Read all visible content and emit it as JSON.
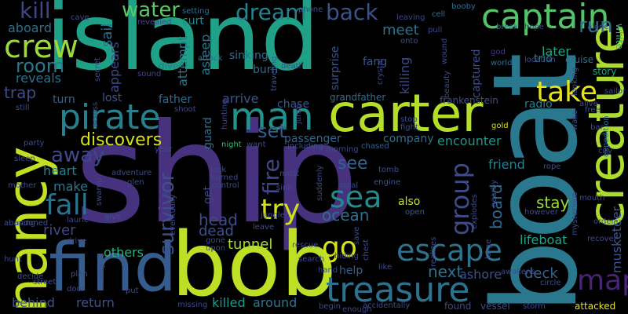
{
  "words": {
    "ship": {
      "text": "ship",
      "color": "#46327e"
    },
    "island": {
      "text": "island",
      "color": "#1fa187"
    },
    "boat": {
      "text": "boat",
      "color": "#2a788e"
    },
    "bob": {
      "text": "bob",
      "color": "#bddf26"
    },
    "find": {
      "text": "find",
      "color": "#365c8d"
    },
    "nancy": {
      "text": "nancy",
      "color": "#c2df23"
    },
    "carter": {
      "text": "carter",
      "color": "#b5de2b"
    },
    "creature": {
      "text": "creature",
      "color": "#addc30"
    },
    "captain": {
      "text": "captain",
      "color": "#52c569"
    },
    "pirate": {
      "text": "pirate",
      "color": "#26818e"
    },
    "treasure": {
      "text": "treasure",
      "color": "#2c728e"
    },
    "man": {
      "text": "man",
      "color": "#20938c"
    },
    "crew": {
      "text": "crew",
      "color": "#9bd93c"
    },
    "escape": {
      "text": "escape",
      "color": "#2c728e"
    },
    "sea": {
      "text": "sea",
      "color": "#238a8d"
    },
    "fall": {
      "text": "fall",
      "color": "#2c728e"
    },
    "map": {
      "text": "map",
      "color": "#482475"
    },
    "take": {
      "text": "take",
      "color": "#e5e419"
    },
    "go": {
      "text": "go",
      "color": "#d5e21a"
    },
    "try": {
      "text": "try",
      "color": "#d0e11c"
    },
    "group": {
      "text": "group",
      "color": "#3e4a89"
    },
    "dream": {
      "text": "dream",
      "color": "#26828e"
    },
    "back": {
      "text": "back",
      "color": "#3b528b"
    },
    "kill": {
      "text": "kill",
      "color": "#414487"
    },
    "water": {
      "text": "water",
      "color": "#5ac864"
    },
    "room": {
      "text": "room",
      "color": "#2a788e"
    },
    "run": {
      "text": "run",
      "color": "#2c728e"
    },
    "away": {
      "text": "away",
      "color": "#3e4989"
    },
    "survivor": {
      "text": "survivor",
      "color": "#3b518b"
    },
    "discovers": {
      "text": "discovers",
      "color": "#d8e219"
    },
    "fire": {
      "text": "fire",
      "color": "#3f4889"
    },
    "set": {
      "text": "set",
      "color": "#365d8d"
    },
    "reveals": {
      "text": "reveals",
      "color": "#2c718e"
    },
    "trap": {
      "text": "trap",
      "color": "#3e4c8a"
    },
    "see": {
      "text": "see",
      "color": "#33638d"
    },
    "board": {
      "text": "board",
      "color": "#306a8e"
    },
    "stay": {
      "text": "stay",
      "color": "#9bd93c"
    },
    "tunnel": {
      "text": "tunnel",
      "color": "#a5db36"
    },
    "ocean": {
      "text": "ocean",
      "color": "#2e6f8e"
    },
    "next": {
      "text": "next",
      "color": "#2c738e"
    },
    "head": {
      "text": "head",
      "color": "#3e4a89"
    },
    "dead": {
      "text": "dead",
      "color": "#3b518b"
    },
    "river": {
      "text": "river",
      "color": "#3f4788"
    },
    "others": {
      "text": "others",
      "color": "#29af7f"
    },
    "deck": {
      "text": "deck",
      "color": "#33638d"
    },
    "ashore": {
      "text": "ashore",
      "color": "#3b518b"
    },
    "lifeboat": {
      "text": "lifeboat",
      "color": "#20a386"
    },
    "musketeer": {
      "text": "musketeer",
      "color": "#3a548c"
    },
    "return": {
      "text": "return",
      "color": "#3b528b"
    },
    "killed": {
      "text": "killed",
      "color": "#1f978b"
    },
    "around": {
      "text": "around",
      "color": "#2a768e"
    },
    "behind": {
      "text": "behind",
      "color": "#3a548c"
    },
    "encounter": {
      "text": "encounter",
      "color": "#1f968b"
    },
    "friend": {
      "text": "friend",
      "color": "#277f8e"
    },
    "passenger": {
      "text": "passenger",
      "color": "#33638d"
    },
    "company": {
      "text": "company",
      "color": "#2d708e"
    },
    "heart": {
      "text": "heart",
      "color": "#27808e"
    },
    "make": {
      "text": "make",
      "color": "#2a788e"
    },
    "meet": {
      "text": "meet",
      "color": "#2c728e"
    },
    "sail": {
      "text": "sail",
      "color": "#2d708e"
    },
    "appears": {
      "text": "appears",
      "color": "#3e4c8a"
    },
    "aboard": {
      "text": "aboard",
      "color": "#2d708e"
    },
    "turn": {
      "text": "turn",
      "color": "#33638d"
    },
    "lost": {
      "text": "lost",
      "color": "#3a548c"
    },
    "father": {
      "text": "father",
      "color": "#2f6c8e"
    },
    "arrive": {
      "text": "arrive",
      "color": "#3a548c"
    },
    "chase": {
      "text": "chase",
      "color": "#3a548c"
    },
    "attempt": {
      "text": "attempt",
      "color": "#2a788e"
    },
    "asleep": {
      "text": "asleep",
      "color": "#2a778e"
    },
    "curt": {
      "text": "curt",
      "color": "#23888e"
    },
    "sinking": {
      "text": "sinking",
      "color": "#2d708e"
    },
    "burn": {
      "text": "burn",
      "color": "#2f6c8e"
    },
    "surprise": {
      "text": "surprise",
      "color": "#3a548c"
    },
    "killing": {
      "text": "killing",
      "color": "#3e4a89"
    },
    "fang": {
      "text": "fang",
      "color": "#39558c"
    },
    "captured": {
      "text": "captured",
      "color": "#3e4c8a"
    },
    "later": {
      "text": "later",
      "color": "#1fa287"
    },
    "radio": {
      "text": "radio",
      "color": "#26828e"
    },
    "also": {
      "text": "also",
      "color": "#cae11f"
    },
    "guard": {
      "text": "guard",
      "color": "#2c728e"
    },
    "get": {
      "text": "get",
      "color": "#3f4788"
    },
    "help": {
      "text": "help",
      "color": "#35608d"
    },
    "trio": {
      "text": "trio",
      "color": "#2a788e"
    },
    "cruise": {
      "text": "cruise",
      "color": "#2e6e8e"
    },
    "story": {
      "text": "story",
      "color": "#21a585"
    },
    "white": {
      "text": "white",
      "color": "#35b779"
    },
    "alone": {
      "text": "alone",
      "color": "#3e4989"
    },
    "hope": {
      "text": "hope",
      "color": "#3f4788"
    },
    "break": {
      "text": "break",
      "color": "#2a768e"
    },
    "location": {
      "text": "location",
      "color": "#3b528b"
    },
    "frankenstein": {
      "text": "frankenstein",
      "color": "#3d4d8a"
    },
    "grandfather": {
      "text": "grandfather",
      "color": "#2e6e8e"
    },
    "wound": {
      "text": "wound",
      "color": "#3e4a89"
    },
    "crystal": {
      "text": "crystal",
      "color": "#3f4788"
    },
    "cell": {
      "text": "cell",
      "color": "#2c728e"
    },
    "leaving": {
      "text": "leaving",
      "color": "#3f4788"
    },
    "phone": {
      "text": "phone",
      "color": "#3e4a89"
    },
    "booby": {
      "text": "booby",
      "color": "#2d708e"
    },
    "setting": {
      "text": "setting",
      "color": "#2c718e"
    },
    "cave": {
      "text": "cave",
      "color": "#3e4a89"
    },
    "revealed": {
      "text": "revealed",
      "color": "#3e4c8a"
    },
    "dive": {
      "text": "dive",
      "color": "#2a788e"
    },
    "attack": {
      "text": "attack",
      "color": "#2c728e"
    },
    "sound": {
      "text": "sound",
      "color": "#3f4788"
    },
    "secret": {
      "text": "secret",
      "color": "#3f4788"
    },
    "traveling": {
      "text": "traveling",
      "color": "#3b528b"
    },
    "death": {
      "text": "death",
      "color": "#3e4a89"
    },
    "onto": {
      "text": "onto",
      "color": "#3b518b"
    },
    "pull": {
      "text": "pull",
      "color": "#3e4a89"
    },
    "god": {
      "text": "god",
      "color": "#46337e"
    },
    "world": {
      "text": "world",
      "color": "#2c728e"
    },
    "beauty": {
      "text": "beauty",
      "color": "#3e4a89"
    },
    "looking": {
      "text": "looking",
      "color": "#3b518b"
    },
    "sailor": {
      "text": "sailor",
      "color": "#3e4c8a"
    },
    "city": {
      "text": "city",
      "color": "#3e4a89"
    },
    "expedition": {
      "text": "expedition",
      "color": "#2c718e"
    },
    "bar": {
      "text": "bar",
      "color": "#3e4a89"
    },
    "wake": {
      "text": "wake",
      "color": "#39558c"
    },
    "alive": {
      "text": "alive",
      "color": "#3e4c8a"
    },
    "free": {
      "text": "free",
      "color": "#39558c"
    },
    "gold": {
      "text": "gold",
      "color": "#d5e21a"
    },
    "stop": {
      "text": "stop",
      "color": "#3e4989"
    },
    "fight": {
      "text": "fight",
      "color": "#3b518b"
    },
    "jump": {
      "text": "jump",
      "color": "#3e4a89"
    },
    "still": {
      "text": "still",
      "color": "#3e4a89"
    },
    "shoot": {
      "text": "shoot",
      "color": "#3e4989"
    },
    "across": {
      "text": "across",
      "color": "#3e4a89"
    },
    "hunting": {
      "text": "hunting",
      "color": "#3f4788"
    },
    "party": {
      "text": "party",
      "color": "#3e4a89"
    },
    "year": {
      "text": "year",
      "color": "#3e4c8a"
    },
    "night": {
      "text": "night",
      "color": "#35b779"
    },
    "want": {
      "text": "want",
      "color": "#3e4a89"
    },
    "including": {
      "text": "including",
      "color": "#39558c"
    },
    "morning": {
      "text": "morning",
      "color": "#3e4a89"
    },
    "chased": {
      "text": "chased",
      "color": "#35608d"
    },
    "sleep": {
      "text": "sleep",
      "color": "#3e4a89"
    },
    "mother": {
      "text": "mother",
      "color": "#3e4a89"
    },
    "using": {
      "text": "using",
      "color": "#3f4788"
    },
    "abandoned": {
      "text": "abandoned",
      "color": "#3b528b"
    },
    "hunt": {
      "text": "hunt",
      "color": "#3e4a89"
    },
    "decide": {
      "text": "decide",
      "color": "#3b518b"
    },
    "street": {
      "text": "street",
      "color": "#3e4a89"
    },
    "plan": {
      "text": "plan",
      "color": "#3b528b"
    },
    "door": {
      "text": "door",
      "color": "#3e4a89"
    },
    "way": {
      "text": "way",
      "color": "#3e4a89"
    },
    "put": {
      "text": "put",
      "color": "#3e4a89"
    },
    "missing": {
      "text": "missing",
      "color": "#3e4a89"
    },
    "drive": {
      "text": "drive",
      "color": "#3e4a89"
    },
    "give": {
      "text": "give",
      "color": "#3b518b"
    },
    "laurie": {
      "text": "laurie",
      "color": "#3e4a89"
    },
    "swamp": {
      "text": "swamp",
      "color": "#3e4a89"
    },
    "adventure": {
      "text": "adventure",
      "color": "#3e4a89"
    },
    "glen": {
      "text": "glen",
      "color": "#3e4a89"
    },
    "eventually": {
      "text": "eventually",
      "color": "#3e4a89"
    },
    "lock": {
      "text": "lock",
      "color": "#3e4a89"
    },
    "burned": {
      "text": "burned",
      "color": "#3e4a89"
    },
    "control": {
      "text": "control",
      "color": "#3e4a89"
    },
    "gone": {
      "text": "gone",
      "color": "#3e4a89"
    },
    "upon": {
      "text": "upon",
      "color": "#3e4a89"
    },
    "leave": {
      "text": "leave",
      "color": "#3e4a89"
    },
    "jungle": {
      "text": "jungle",
      "color": "#3e4a89"
    },
    "sink": {
      "text": "sink",
      "color": "#3e4a89"
    },
    "must": {
      "text": "must",
      "color": "#3e4a89"
    },
    "suddenly": {
      "text": "suddenly",
      "color": "#3e4a89"
    },
    "steal": {
      "text": "steal",
      "color": "#3e4a89"
    },
    "tomb": {
      "text": "tomb",
      "color": "#3e4a89"
    },
    "engine": {
      "text": "engine",
      "color": "#3b528b"
    },
    "open": {
      "text": "open",
      "color": "#35608d"
    },
    "save": {
      "text": "save",
      "color": "#3e4a89"
    },
    "chest": {
      "text": "chest",
      "color": "#3e4a89"
    },
    "hiding": {
      "text": "hiding",
      "color": "#3e4a89"
    },
    "rescue": {
      "text": "rescue",
      "color": "#3e4a89"
    },
    "search": {
      "text": "search",
      "color": "#3e4a89"
    },
    "begin": {
      "text": "begin",
      "color": "#3e4a89"
    },
    "enough": {
      "text": "enough",
      "color": "#3e4a89"
    },
    "accidentally": {
      "text": "accidentally",
      "color": "#3e4a89"
    },
    "found": {
      "text": "found",
      "color": "#3e4a89"
    },
    "vessel": {
      "text": "vessel",
      "color": "#3e4a89"
    },
    "storm": {
      "text": "storm",
      "color": "#3e4a89"
    },
    "like": {
      "text": "like",
      "color": "#3e4a89"
    },
    "hand": {
      "text": "hand",
      "color": "#3e4a89"
    },
    "realizes": {
      "text": "realizes",
      "color": "#3e4a89"
    },
    "explodes": {
      "text": "explodes",
      "color": "#3e4a89"
    },
    "large": {
      "text": "large",
      "color": "#3e4a89"
    },
    "awakens": {
      "text": "awakens",
      "color": "#3e4a89"
    },
    "circle": {
      "text": "circle",
      "color": "#3e4a89"
    },
    "attacked": {
      "text": "attacked",
      "color": "#e5e419"
    },
    "rope": {
      "text": "rope",
      "color": "#3e4a89"
    },
    "however": {
      "text": "however",
      "color": "#3e4a89"
    },
    "mouth": {
      "text": "mouth",
      "color": "#3e4a89"
    },
    "mysterious": {
      "text": "mysterious",
      "color": "#3e4a89"
    },
    "order": {
      "text": "order",
      "color": "#3e4a89"
    },
    "recover": {
      "text": "recover",
      "color": "#3e4a89"
    },
    "nearby": {
      "text": "nearby",
      "color": "#3e4a89"
    },
    "evil": {
      "text": "evil",
      "color": "#3e4a89"
    },
    "go2": {
      "text": "go",
      "color": "#d5e21a"
    }
  }
}
